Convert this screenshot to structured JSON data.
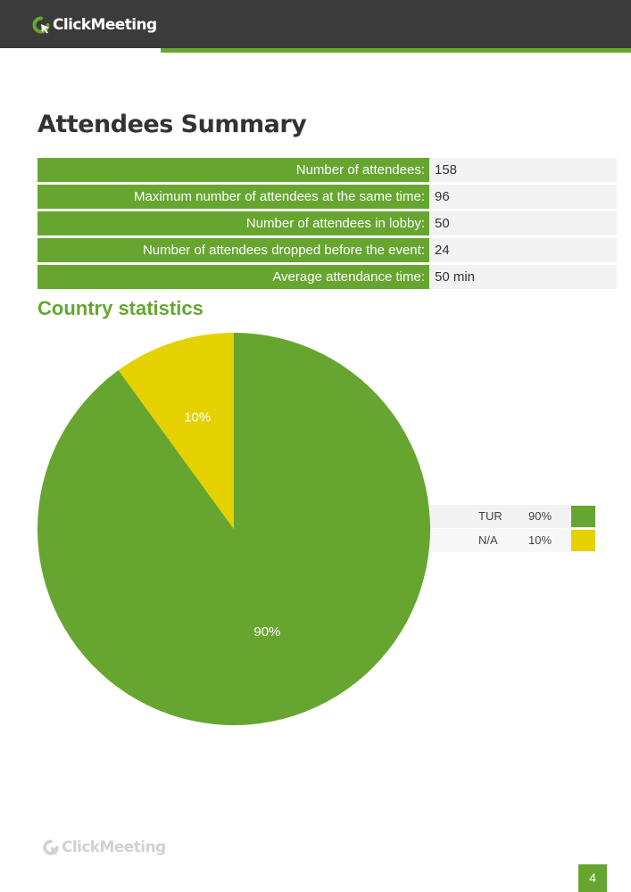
{
  "header": {
    "brand": "ClickMeeting",
    "colors": {
      "bar": "#3c3b3b",
      "accent": "#66a630"
    }
  },
  "page_title": "Attendees Summary",
  "summary": [
    {
      "label": "Number of attendees:",
      "value": "158"
    },
    {
      "label": "Maximum number of attendees at the same time:",
      "value": "96"
    },
    {
      "label": "Number of attendees in lobby:",
      "value": "50"
    },
    {
      "label": "Number of attendees dropped before the event:",
      "value": "24"
    },
    {
      "label": "Average attendance time:",
      "value": "50 min"
    }
  ],
  "country_section": {
    "title": "Country statistics"
  },
  "chart_data": {
    "type": "pie",
    "title": "",
    "series": [
      {
        "name": "TUR",
        "value": 90,
        "label": "90%",
        "color": "#66a630"
      },
      {
        "name": "N/A",
        "value": 10,
        "label": "10%",
        "color": "#e5d100"
      }
    ]
  },
  "legend": [
    {
      "name": "TUR",
      "pct": "90%",
      "color": "#66a630"
    },
    {
      "name": "N/A",
      "pct": "10%",
      "color": "#e5d100"
    }
  ],
  "footer": {
    "brand": "ClickMeeting",
    "page_number": "4"
  }
}
